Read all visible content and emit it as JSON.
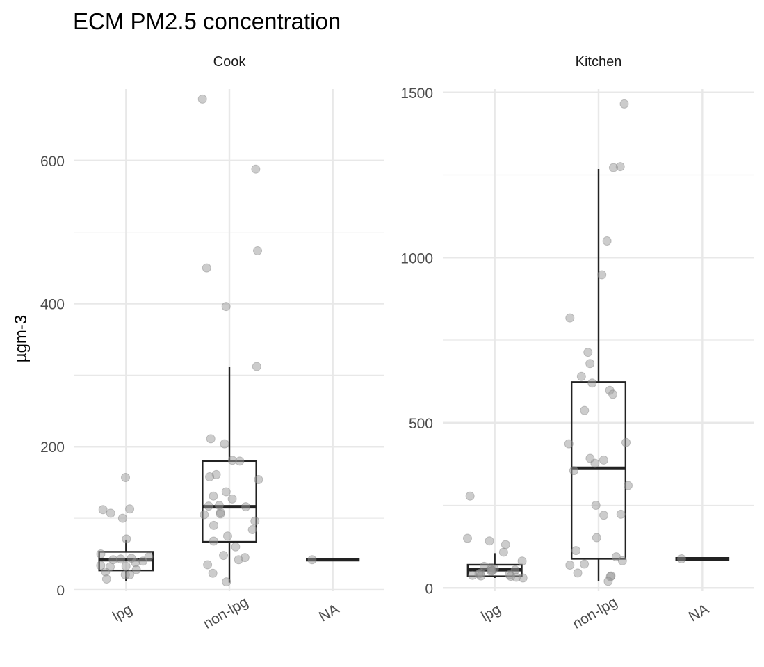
{
  "chart_data": {
    "type": "box",
    "title": "ECM PM2.5 concentration",
    "ylabel": "µgm-3",
    "categories": [
      "lpg",
      "non-lpg",
      "NA"
    ],
    "colors": {
      "points": "#999999",
      "box_stroke": "#222222",
      "grid": "#e8e8e8",
      "text": "#4d4d4d"
    },
    "grid": true,
    "panels": [
      {
        "name": "Cook",
        "ylim": [
          -2,
          700
        ],
        "yticks": [
          0,
          200,
          400,
          600
        ],
        "ytick_labels": [
          "0",
          "200",
          "400",
          "600"
        ],
        "yminor": [
          100,
          300,
          500
        ],
        "boxes": [
          {
            "category": "lpg",
            "q1": 27,
            "median": 42,
            "q3": 53,
            "whisker_low": 12,
            "whisker_high": 70
          },
          {
            "category": "non-lpg",
            "q1": 67,
            "median": 116,
            "q3": 180,
            "whisker_low": 10,
            "whisker_high": 312
          },
          {
            "category": "NA",
            "q1": 42,
            "median": 42,
            "q3": 42,
            "whisker_low": 42,
            "whisker_high": 42
          }
        ],
        "points": [
          {
            "category": "lpg",
            "values": [
              157,
              113,
              112,
              107,
              100,
              71,
              50,
              46,
              44,
              43,
              42,
              40,
              38,
              34,
              33,
              32,
              28,
              25,
              21,
              21,
              15
            ]
          },
          {
            "category": "non-lpg",
            "values": [
              686,
              588,
              474,
              450,
              396,
              312,
              211,
              204,
              181,
              180,
              161,
              158,
              154,
              137,
              131,
              127,
              118,
              117,
              116,
              108,
              106,
              105,
              96,
              90,
              84,
              75,
              68,
              60,
              48,
              45,
              42,
              35,
              23,
              11
            ]
          },
          {
            "category": "NA",
            "values": [
              42
            ]
          }
        ]
      },
      {
        "name": "Kitchen",
        "ylim": [
          -10,
          1510
        ],
        "yticks": [
          0,
          500,
          1000,
          1500
        ],
        "ytick_labels": [
          "0",
          "500",
          "1000",
          "1500"
        ],
        "yminor": [
          250,
          750,
          1250
        ],
        "boxes": [
          {
            "category": "lpg",
            "q1": 35,
            "median": 55,
            "q3": 70,
            "whisker_low": 30,
            "whisker_high": 105
          },
          {
            "category": "non-lpg",
            "q1": 88,
            "median": 362,
            "q3": 623,
            "whisker_low": 20,
            "whisker_high": 1268
          },
          {
            "category": "NA",
            "q1": 88,
            "median": 88,
            "q3": 88,
            "whisker_low": 88,
            "whisker_high": 88
          }
        ],
        "points": [
          {
            "category": "lpg",
            "values": [
              278,
              150,
              142,
              131,
              108,
              81,
              65,
              62,
              57,
              55,
              54,
              52,
              50,
              45,
              42,
              40,
              38,
              36,
              35,
              32,
              30
            ]
          },
          {
            "category": "non-lpg",
            "values": [
              1465,
              1275,
              1272,
              1050,
              948,
              817,
              713,
              679,
              640,
              620,
              598,
              586,
              537,
              440,
              436,
              392,
              387,
              377,
              355,
              310,
              250,
              223,
              220,
              152,
              113,
              94,
              82,
              72,
              69,
              45,
              36,
              34,
              20
            ]
          },
          {
            "category": "NA",
            "values": [
              88
            ]
          }
        ]
      }
    ]
  }
}
